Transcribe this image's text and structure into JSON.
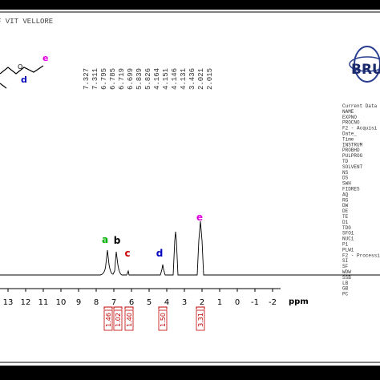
{
  "header": {
    "title": "F VIT VELLORE"
  },
  "structure": {
    "labels": [
      "e",
      "d"
    ]
  },
  "peak_list": [
    "7.327",
    "7.311",
    "6.795",
    "6.785",
    "6.719",
    "6.699",
    "5.839",
    "5.826",
    "4.164",
    "4.151",
    "4.146",
    "4.131",
    "3.436",
    "2.021",
    "2.015"
  ],
  "logo": "BRU",
  "parameters": [
    "Current Data",
    "NAME",
    "EXPNO",
    "PROCNO",
    "F2 - Acquisi",
    "Date_",
    "Time",
    "INSTRUM",
    "PROBHD",
    "PULPROG",
    "TD",
    "SOLVENT",
    "NS",
    "DS",
    "SWH",
    "FIDRES",
    "AQ",
    "RG",
    "DW",
    "DE",
    "TE",
    "D1",
    "TD0",
    "SFO1",
    "NUC1",
    "P1",
    "PLW1",
    "F2 - Processi",
    "SI",
    "SF",
    "WDW",
    "SSB",
    "LB",
    "GB",
    "PC"
  ],
  "spectrum": {
    "peak_labels": [
      "a",
      "b",
      "c",
      "d",
      "e"
    ],
    "axis": {
      "ticks": [
        "13",
        "12",
        "11",
        "10",
        "9",
        "8",
        "7",
        "6",
        "5",
        "4",
        "3",
        "2",
        "1",
        "0",
        "-1",
        "-2"
      ],
      "unit": "ppm"
    },
    "integrals": [
      "1.46",
      "1.02",
      "1.40",
      "1.50",
      "3.31"
    ]
  }
}
